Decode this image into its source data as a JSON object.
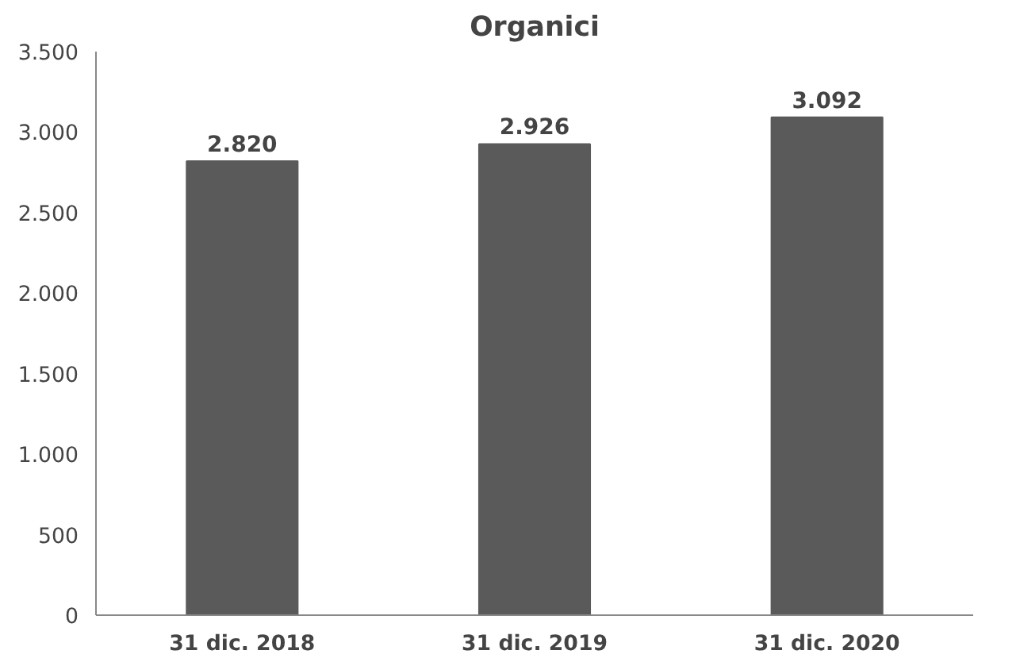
{
  "chart_data": {
    "type": "bar",
    "title": "Organici",
    "categories": [
      "31 dic. 2018",
      "31 dic. 2019",
      "31 dic. 2020"
    ],
    "values": [
      2820,
      2926,
      3092
    ],
    "color": "#5a5a5a",
    "value_labels": [
      "2.820",
      "2.926",
      "3.092"
    ],
    "ylim": [
      0,
      3500
    ],
    "yticks": [
      0,
      500,
      {
        "value": 1000,
        "label": "1.000"
      },
      {
        "value": 1500,
        "label": "1.500"
      },
      {
        "value": 2000,
        "label": "2.000"
      },
      {
        "value": 2500,
        "label": "2.500"
      },
      {
        "value": 3000,
        "label": "3.000"
      },
      {
        "value": 3500,
        "label": "3.500"
      }
    ],
    "grid": false
  }
}
